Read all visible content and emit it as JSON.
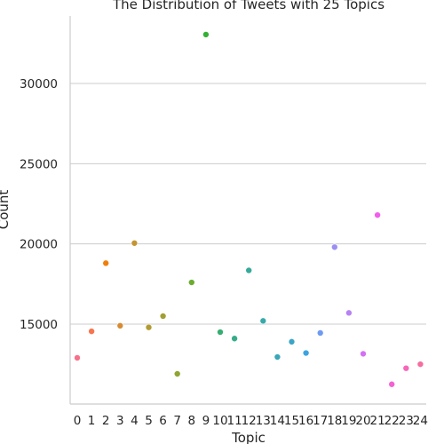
{
  "chart_data": {
    "type": "scatter",
    "title": "The Distribution of Tweets with 25 Topics",
    "xlabel": "Topic",
    "ylabel": "Count",
    "categories": [
      "0",
      "1",
      "2",
      "3",
      "4",
      "5",
      "6",
      "7",
      "8",
      "9",
      "10",
      "11",
      "12",
      "13",
      "14",
      "15",
      "16",
      "17",
      "18",
      "19",
      "20",
      "21",
      "22",
      "23",
      "24"
    ],
    "values": [
      12900,
      14550,
      18800,
      14900,
      20050,
      14800,
      15500,
      11900,
      17600,
      33050,
      14500,
      14100,
      18350,
      15200,
      12950,
      13900,
      13200,
      14450,
      19800,
      15700,
      13150,
      21800,
      11250,
      12250,
      12500
    ],
    "colors": [
      "#f77189",
      "#f7754f",
      "#f07e0b",
      "#d58c32",
      "#c39532",
      "#b29b31",
      "#a19f31",
      "#8ea531",
      "#6cac31",
      "#33b033",
      "#35ae71",
      "#36ac89",
      "#37aa9a",
      "#38a9a9",
      "#39a7b7",
      "#3ba5c7",
      "#3da3e0",
      "#6e9af3",
      "#9b8ff4",
      "#b782f4",
      "#d470f4",
      "#f45deb",
      "#f462d1",
      "#f568b8",
      "#f66ca1"
    ],
    "yticks": [
      15000,
      20000,
      25000,
      30000
    ],
    "ytick_labels": [
      "15000",
      "20000",
      "25000",
      "30000"
    ],
    "ylim": [
      10000,
      34000
    ],
    "grid": "y-only",
    "legend": "none"
  }
}
